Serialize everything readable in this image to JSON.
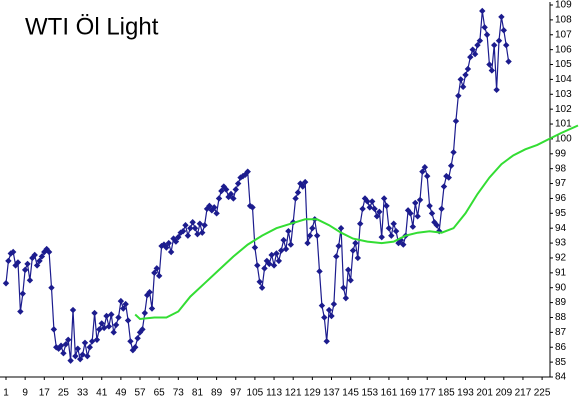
{
  "chart_data": {
    "type": "line",
    "title": "WTI Öl Light",
    "xlim": [
      1,
      240
    ],
    "xticks": [
      1,
      9,
      17,
      25,
      33,
      41,
      49,
      57,
      65,
      73,
      81,
      89,
      97,
      105,
      113,
      121,
      129,
      137,
      145,
      153,
      161,
      169,
      177,
      185,
      193,
      201,
      209,
      217,
      225
    ],
    "ylim": [
      84,
      109
    ],
    "yticks": [
      84,
      85,
      86,
      87,
      88,
      89,
      90,
      91,
      92,
      93,
      94,
      95,
      96,
      97,
      98,
      99,
      100,
      101,
      102,
      103,
      104,
      105,
      106,
      107,
      108,
      109
    ],
    "series": [
      {
        "color": "#1c1c8e",
        "markers": true,
        "x": [
          1,
          2,
          3,
          4,
          5,
          6,
          7,
          8,
          9,
          10,
          11,
          12,
          13,
          14,
          15,
          16,
          17,
          18,
          19,
          20,
          21,
          22,
          23,
          24,
          25,
          26,
          27,
          28,
          29,
          30,
          31,
          32,
          33,
          34,
          35,
          36,
          37,
          38,
          39,
          40,
          41,
          42,
          43,
          44,
          45,
          46,
          47,
          48,
          49,
          50,
          51,
          52,
          53,
          54,
          55,
          56,
          57,
          58,
          59,
          60,
          61,
          62,
          63,
          64,
          65,
          66,
          67,
          68,
          69,
          70,
          71,
          72,
          73,
          74,
          75,
          76,
          77,
          78,
          79,
          80,
          81,
          82,
          83,
          84,
          85,
          86,
          87,
          88,
          89,
          90,
          91,
          92,
          93,
          94,
          95,
          96,
          97,
          98,
          99,
          100,
          101,
          102,
          103,
          104,
          105,
          106,
          107,
          108,
          109,
          110,
          111,
          112,
          113,
          114,
          115,
          116,
          117,
          118,
          119,
          120,
          121,
          122,
          123,
          124,
          125,
          126,
          127,
          128,
          129,
          130,
          131,
          132,
          133,
          134,
          135,
          136,
          137,
          138,
          139,
          140,
          141,
          142,
          143,
          144,
          145,
          146,
          147,
          148,
          149,
          150,
          151,
          152,
          153,
          154,
          155,
          156,
          157,
          158,
          159,
          160,
          161,
          162,
          163,
          164,
          165,
          166,
          167,
          168,
          169,
          170,
          171,
          172,
          173,
          174,
          175,
          176,
          177,
          178,
          179,
          180,
          181,
          182,
          183,
          184,
          185,
          186,
          187,
          188,
          189,
          190,
          191,
          192,
          193,
          194,
          195,
          196,
          197,
          198,
          199,
          200,
          201,
          202,
          203,
          204,
          205,
          206,
          207,
          208,
          209,
          210,
          211
        ],
        "values": [
          90.3,
          91.8,
          92.3,
          92.4,
          91.5,
          91.7,
          88.4,
          89.6,
          91.2,
          91.6,
          90.5,
          92.0,
          92.2,
          91.5,
          91.8,
          92.1,
          92.4,
          92.6,
          92.4,
          90.0,
          87.2,
          86.0,
          85.9,
          86.1,
          85.6,
          86.2,
          86.5,
          85.1,
          88.5,
          85.4,
          85.9,
          85.2,
          85.5,
          86.3,
          85.4,
          86.0,
          86.4,
          88.3,
          86.5,
          87.2,
          87.6,
          87.3,
          88.1,
          87.4,
          88.2,
          87.0,
          87.5,
          88.0,
          89.1,
          88.6,
          88.9,
          87.8,
          86.4,
          85.8,
          86.0,
          86.6,
          87.0,
          87.2,
          88.3,
          89.5,
          89.7,
          88.6,
          91.0,
          91.3,
          90.8,
          92.8,
          92.9,
          92.7,
          93.0,
          92.4,
          93.3,
          93.1,
          93.4,
          93.7,
          93.8,
          94.2,
          93.5,
          94.0,
          94.4,
          94.0,
          93.6,
          94.3,
          93.7,
          94.2,
          95.3,
          95.5,
          95.2,
          95.4,
          95.0,
          96.0,
          96.5,
          96.8,
          96.6,
          96.1,
          96.3,
          96.0,
          96.6,
          97.0,
          97.4,
          97.5,
          97.6,
          97.8,
          95.5,
          95.4,
          92.7,
          91.5,
          90.4,
          90.0,
          91.3,
          91.8,
          91.6,
          92.2,
          91.5,
          92.3,
          91.8,
          92.5,
          93.2,
          92.6,
          93.8,
          92.9,
          94.4,
          96.0,
          96.4,
          97.0,
          96.8,
          97.1,
          93.0,
          93.5,
          94.0,
          94.6,
          93.5,
          91.1,
          88.8,
          88.0,
          86.4,
          88.5,
          88.1,
          88.9,
          92.1,
          92.8,
          94.0,
          90.0,
          89.3,
          91.2,
          90.5,
          92.5,
          93.0,
          92.0,
          94.3,
          95.3,
          96.0,
          95.8,
          95.4,
          95.8,
          95.3,
          94.8,
          95.1,
          93.4,
          96.0,
          95.5,
          94.0,
          93.5,
          94.3,
          93.8,
          93.0,
          93.2,
          92.9,
          93.5,
          95.2,
          95.0,
          94.1,
          95.7,
          94.8,
          95.9,
          97.8,
          98.1,
          97.5,
          95.5,
          95.0,
          94.4,
          94.2,
          93.8,
          95.3,
          96.8,
          97.5,
          97.4,
          98.2,
          99.1,
          101.2,
          102.9,
          104.0,
          103.5,
          104.3,
          104.7,
          105.5,
          106.0,
          105.7,
          106.3,
          106.6,
          108.6,
          107.5,
          107.0,
          105.0,
          104.6,
          106.3,
          103.3,
          106.6,
          108.2,
          107.3,
          106.3,
          105.2
        ]
      },
      {
        "color": "#33dd33",
        "markers": false,
        "x": [
          55,
          57,
          63,
          68,
          73,
          78,
          84,
          90,
          96,
          102,
          108,
          114,
          120,
          126,
          131,
          136,
          141,
          146,
          152,
          158,
          163,
          168,
          173,
          178,
          183,
          188,
          193,
          198,
          203,
          208,
          213,
          218,
          223,
          228,
          233,
          240
        ],
        "values": [
          88.2,
          87.9,
          88.0,
          88.0,
          88.4,
          89.4,
          90.3,
          91.2,
          92.1,
          92.9,
          93.5,
          94.0,
          94.3,
          94.6,
          94.6,
          94.2,
          93.7,
          93.3,
          93.1,
          93.0,
          93.1,
          93.5,
          93.7,
          93.8,
          93.7,
          94.0,
          95.0,
          96.3,
          97.4,
          98.3,
          98.9,
          99.3,
          99.6,
          100.0,
          100.4,
          100.9
        ]
      }
    ]
  }
}
